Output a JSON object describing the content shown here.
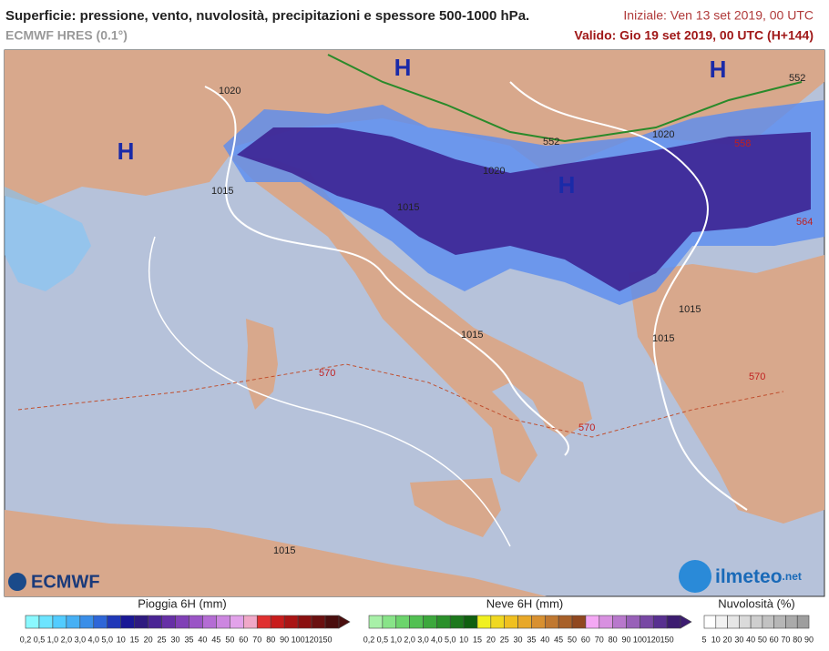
{
  "header": {
    "title": "Superficie: pressione, vento, nuvolosità, precipitazioni e spessore 500-1000 hPa.",
    "model": "ECMWF HRES (0.1°)",
    "initial": "Iniziale: Ven 13 set 2019, 00 UTC",
    "valid": "Valido: Gio 19 set 2019, 00 UTC (H+144)"
  },
  "map": {
    "labels": [
      "H",
      "H",
      "H",
      "H",
      "1020",
      "1015",
      "1020",
      "1015",
      "1020",
      "1015",
      "1015",
      "1015",
      "1015",
      "570",
      "570",
      "570",
      "552",
      "552",
      "558",
      "564"
    ]
  },
  "logos": {
    "left": "ECMWF",
    "right_main": "ilmeteo",
    "right_suffix": ".net"
  },
  "legends": [
    {
      "title": "Pioggia 6H (mm)",
      "labels": [
        "0,2",
        "0,5",
        "1,0",
        "2,0",
        "3,0",
        "4,0",
        "5,0",
        "10",
        "15",
        "20",
        "25",
        "30",
        "35",
        "40",
        "45",
        "50",
        "60",
        "70",
        "80",
        "90",
        "100",
        "120",
        "150"
      ],
      "colors": [
        "#8af8ff",
        "#6ce4ff",
        "#52ccff",
        "#46b0f4",
        "#3a8ee8",
        "#2e66d8",
        "#2038b8",
        "#1a1896",
        "#2e1a80",
        "#4a2494",
        "#6630a6",
        "#8040b6",
        "#9a54c6",
        "#b46cd4",
        "#cc86e0",
        "#e2a2ea",
        "#f0a8c8",
        "#e03030",
        "#c81c1c",
        "#aa1414",
        "#8a1010",
        "#6a1010",
        "#4a0e0e"
      ]
    },
    {
      "title": "Neve 6H (mm)",
      "labels": [
        "0,2",
        "0,5",
        "1,0",
        "2,0",
        "3,0",
        "4,0",
        "5,0",
        "10",
        "15",
        "20",
        "25",
        "30",
        "35",
        "40",
        "45",
        "50",
        "60",
        "70",
        "80",
        "90",
        "100",
        "120",
        "150"
      ],
      "colors": [
        "#a8f0a8",
        "#88e488",
        "#6cd46c",
        "#52c052",
        "#3ca83c",
        "#2a902a",
        "#1c781c",
        "#106010",
        "#f0f020",
        "#f0d820",
        "#f0c020",
        "#e8a828",
        "#d89030",
        "#c07830",
        "#a86028",
        "#904820",
        "#f4a8f4",
        "#d890e0",
        "#b878cc",
        "#9860b8",
        "#7848a4",
        "#583090",
        "#3c1c70"
      ]
    },
    {
      "title": "Nuvolosità (%)",
      "labels": [
        "5",
        "10",
        "20",
        "30",
        "40",
        "50",
        "60",
        "70",
        "80",
        "90"
      ],
      "colors": [
        "#ffffff",
        "#f2f2f2",
        "#e6e6e6",
        "#dadada",
        "#cecece",
        "#c2c2c2",
        "#b6b6b6",
        "#aaaaaa",
        "#9e9e9e"
      ]
    }
  ]
}
